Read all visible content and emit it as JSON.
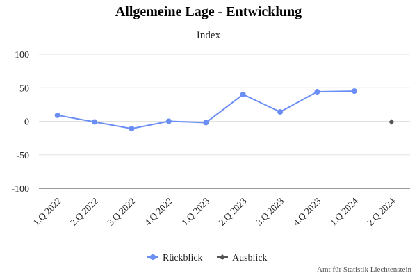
{
  "chart_data": {
    "type": "line",
    "title": "Allgemeine Lage - Entwicklung",
    "subtitle": "Index",
    "categories": [
      "1.Q 2022",
      "2.Q 2022",
      "3.Q 2022",
      "4.Q 2022",
      "1.Q 2023",
      "2.Q 2023",
      "3.Q 2023",
      "4.Q 2023",
      "1.Q 2024",
      "2.Q 2024"
    ],
    "ylim": [
      -100,
      100
    ],
    "yticks": [
      100,
      50,
      0,
      -50,
      -100
    ],
    "ytick_labels": [
      "100",
      "50",
      "0",
      "-50",
      "-100"
    ],
    "grid": true,
    "legend_position": "bottom-center",
    "series": [
      {
        "name": "Rückblick",
        "color": "#6b8ef5",
        "marker": "circle",
        "values": [
          9,
          -1,
          -11,
          0,
          -2,
          40,
          14,
          44,
          45,
          null
        ]
      },
      {
        "name": "Ausblick",
        "color": "#555555",
        "marker": "diamond",
        "values": [
          null,
          null,
          null,
          null,
          null,
          null,
          null,
          null,
          null,
          -1
        ]
      }
    ]
  },
  "credits": "Amt für Statistik Liechtenstein"
}
